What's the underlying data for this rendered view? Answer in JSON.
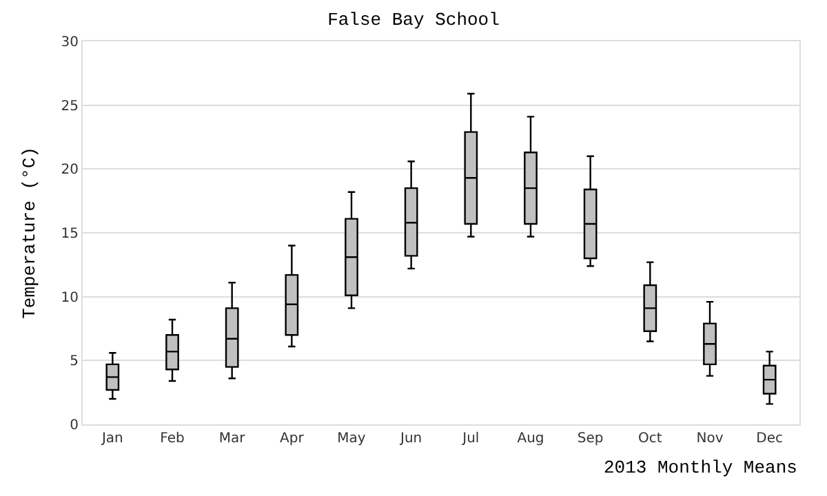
{
  "chart_data": {
    "type": "box",
    "title": "False Bay School",
    "ylabel": "Temperature (°C)",
    "annotations": [
      "2013 Monthly Means"
    ],
    "categories": [
      "Jan",
      "Feb",
      "Mar",
      "Apr",
      "May",
      "Jun",
      "Jul",
      "Aug",
      "Sep",
      "Oct",
      "Nov",
      "Dec"
    ],
    "color": "#c0c0c0",
    "boxes": [
      {
        "low": 2.0,
        "q1": 2.7,
        "median": 3.7,
        "q3": 4.7,
        "high": 5.6
      },
      {
        "low": 3.4,
        "q1": 4.3,
        "median": 5.7,
        "q3": 7.0,
        "high": 8.2
      },
      {
        "low": 3.6,
        "q1": 4.5,
        "median": 6.7,
        "q3": 9.1,
        "high": 11.1
      },
      {
        "low": 6.1,
        "q1": 7.0,
        "median": 9.4,
        "q3": 11.7,
        "high": 14.0
      },
      {
        "low": 9.1,
        "q1": 10.1,
        "median": 13.1,
        "q3": 16.1,
        "high": 18.2
      },
      {
        "low": 12.2,
        "q1": 13.2,
        "median": 15.8,
        "q3": 18.5,
        "high": 20.6
      },
      {
        "low": 14.7,
        "q1": 15.7,
        "median": 19.3,
        "q3": 22.9,
        "high": 25.9
      },
      {
        "low": 14.7,
        "q1": 15.7,
        "median": 18.5,
        "q3": 21.3,
        "high": 24.1
      },
      {
        "low": 12.4,
        "q1": 13.0,
        "median": 15.7,
        "q3": 18.4,
        "high": 21.0
      },
      {
        "low": 6.5,
        "q1": 7.3,
        "median": 9.1,
        "q3": 10.9,
        "high": 12.7
      },
      {
        "low": 3.8,
        "q1": 4.7,
        "median": 6.3,
        "q3": 7.9,
        "high": 9.6
      },
      {
        "low": 1.6,
        "q1": 2.4,
        "median": 3.5,
        "q3": 4.6,
        "high": 5.7
      }
    ],
    "ylim": [
      0,
      30
    ],
    "yticks": [
      0,
      5,
      10,
      15,
      20,
      25,
      30
    ],
    "grid": "y"
  }
}
